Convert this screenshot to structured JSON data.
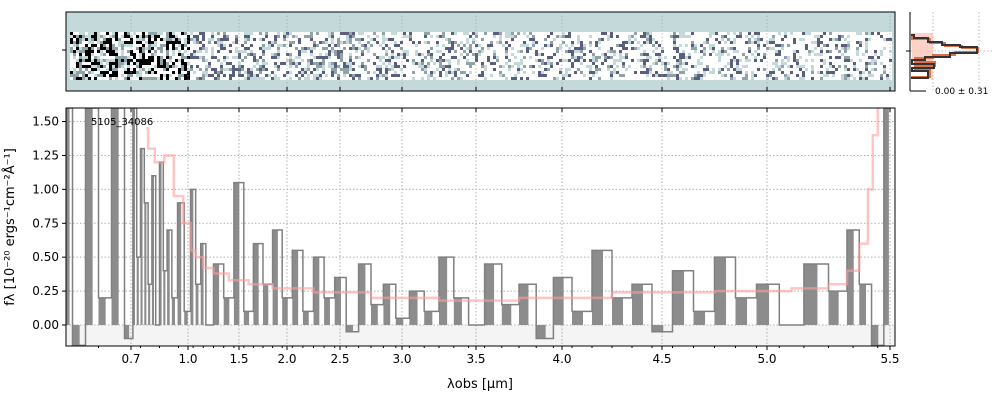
{
  "chart_data": [
    {
      "type": "heatmap",
      "panel": "2d-spectrum",
      "colormap": [
        "#000000",
        "#5a5f80",
        "#8fa3a8",
        "#c4dada",
        "#ffffff"
      ],
      "background": "#c4dada"
    },
    {
      "type": "histogram",
      "panel": "residual-distribution",
      "annotation": "0.00 ± 0.31",
      "series_colors": [
        "#333333",
        "#e0704a",
        "#fcc6b8"
      ]
    },
    {
      "type": "line",
      "annotation": "5105_34086",
      "xlabel": "λobs [μm]",
      "ylabel": "fλ [10⁻²⁰ ergs⁻¹cm⁻²Å⁻¹]",
      "xticks": [
        0.7,
        1.0,
        1.5,
        2.0,
        2.5,
        3.0,
        3.5,
        4.0,
        4.5,
        5.0,
        5.5
      ],
      "xtick_labels": [
        "0.7",
        "1.0",
        "1.5",
        "2.0",
        "2.5",
        "3.0",
        "3.5",
        "4.0",
        "4.5",
        "5.0",
        "5.5"
      ],
      "yticks": [
        0.0,
        0.25,
        0.5,
        0.75,
        1.0,
        1.25,
        1.5
      ],
      "ytick_labels": [
        "0.00",
        "0.25",
        "0.50",
        "0.75",
        "1.00",
        "1.25",
        "1.50"
      ],
      "xlim": [
        0.6,
        5.52
      ],
      "ylim": [
        -0.155,
        1.6
      ],
      "grid": true,
      "series": [
        {
          "role": "data",
          "style": "steps",
          "color": "#808080",
          "x": [
            0.6,
            0.62,
            0.64,
            0.66,
            0.68,
            0.7,
            0.72,
            0.74,
            0.76,
            0.78,
            0.8,
            0.82,
            0.84,
            0.86,
            0.88,
            0.9,
            0.93,
            0.96,
            1.0,
            1.05,
            1.1,
            1.15,
            1.2,
            1.3,
            1.4,
            1.5,
            1.6,
            1.7,
            1.8,
            1.9,
            2.0,
            2.1,
            2.2,
            2.3,
            2.4,
            2.5,
            2.6,
            2.7,
            2.8,
            2.9,
            3.0,
            3.1,
            3.2,
            3.3,
            3.4,
            3.5,
            3.6,
            3.7,
            3.8,
            3.9,
            4.0,
            4.1,
            4.2,
            4.3,
            4.4,
            4.5,
            4.6,
            4.7,
            4.8,
            4.9,
            5.0,
            5.1,
            5.2,
            5.3,
            5.35,
            5.4,
            5.45,
            5.5
          ],
          "y": [
            1.6,
            -0.15,
            1.6,
            0.2,
            1.6,
            -0.1,
            1.6,
            0.5,
            1.3,
            0.9,
            0.3,
            1.1,
            0.0,
            1.2,
            0.4,
            0.7,
            0.2,
            0.9,
            0.1,
            1.0,
            0.3,
            0.6,
            0.0,
            0.45,
            0.2,
            1.05,
            0.1,
            0.6,
            0.3,
            0.7,
            0.2,
            0.55,
            0.1,
            0.5,
            0.2,
            0.35,
            -0.05,
            0.45,
            0.15,
            0.3,
            0.05,
            0.25,
            0.1,
            0.5,
            0.2,
            0.0,
            0.45,
            0.15,
            0.3,
            -0.1,
            0.35,
            0.1,
            0.55,
            0.2,
            0.3,
            -0.05,
            0.4,
            0.1,
            0.5,
            0.2,
            0.3,
            0.0,
            0.45,
            0.25,
            0.7,
            0.3,
            -0.15,
            1.6
          ]
        },
        {
          "role": "model",
          "style": "steps",
          "color": "#ff9e9e",
          "x": [
            0.78,
            0.8,
            0.85,
            0.9,
            0.95,
            1.0,
            1.05,
            1.1,
            1.2,
            1.3,
            1.5,
            1.7,
            2.0,
            2.5,
            3.0,
            3.5,
            4.0,
            4.5,
            5.0,
            5.2,
            5.3,
            5.35,
            5.4,
            5.42,
            5.44,
            5.46
          ],
          "y": [
            1.45,
            1.3,
            1.2,
            1.25,
            0.95,
            0.75,
            0.55,
            0.5,
            0.42,
            0.38,
            0.33,
            0.3,
            0.27,
            0.24,
            0.2,
            0.18,
            0.2,
            0.24,
            0.25,
            0.27,
            0.3,
            0.4,
            0.6,
            1.0,
            1.4,
            1.6
          ]
        }
      ]
    }
  ]
}
